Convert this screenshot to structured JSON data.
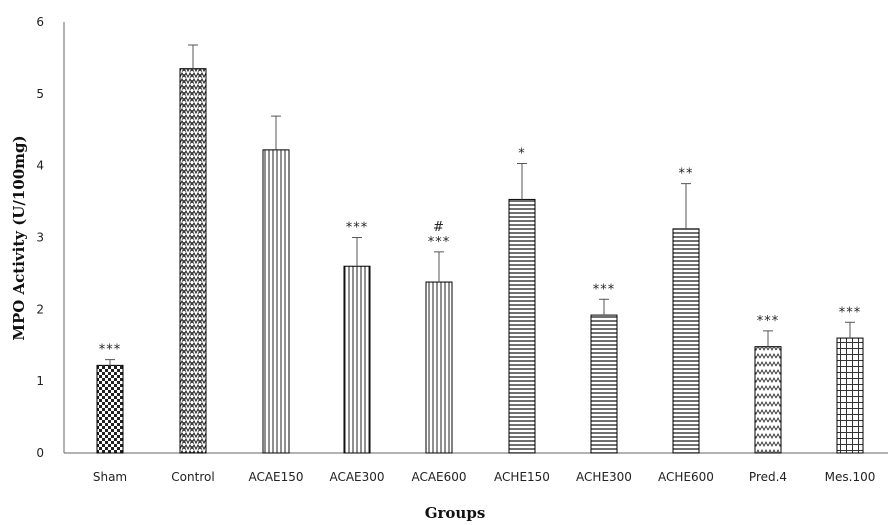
{
  "chart_data": {
    "type": "bar",
    "xlabel": "Groups",
    "ylabel": "MPO Activity (U/100mg)",
    "ylim": [
      0,
      6
    ],
    "yticks": [
      "0",
      "1",
      "2",
      "3",
      "4",
      "5",
      "6"
    ],
    "grid": false,
    "legend": "none",
    "bars": [
      {
        "category": "Sham",
        "value": 1.22,
        "error": 0.08,
        "annotation": [
          "***"
        ],
        "pattern": "checker",
        "color": "#000000"
      },
      {
        "category": "Control",
        "value": 5.35,
        "error": 0.33,
        "annotation": [],
        "pattern": "zigzag-dense",
        "color": "#000000"
      },
      {
        "category": "ACAE150",
        "value": 4.22,
        "error": 0.47,
        "annotation": [],
        "pattern": "vertical-lines",
        "color": "#000000"
      },
      {
        "category": "ACAE300",
        "value": 2.6,
        "error": 0.4,
        "annotation": [
          "***"
        ],
        "pattern": "vertical-lines",
        "color": "#000000"
      },
      {
        "category": "ACAE600",
        "value": 2.38,
        "error": 0.42,
        "annotation": [
          "#",
          "***"
        ],
        "pattern": "vertical-lines",
        "color": "#000000"
      },
      {
        "category": "ACHE150",
        "value": 3.53,
        "error": 0.5,
        "annotation": [
          "*"
        ],
        "pattern": "horizontal-lines",
        "color": "#000000"
      },
      {
        "category": "ACHE300",
        "value": 1.92,
        "error": 0.22,
        "annotation": [
          "***"
        ],
        "pattern": "horizontal-lines",
        "color": "#000000"
      },
      {
        "category": "ACHE600",
        "value": 3.12,
        "error": 0.63,
        "annotation": [
          "**"
        ],
        "pattern": "horizontal-lines",
        "color": "#000000"
      },
      {
        "category": "Pred.4",
        "value": 1.48,
        "error": 0.22,
        "annotation": [
          "***"
        ],
        "pattern": "zigzag",
        "color": "#000000"
      },
      {
        "category": "Mes.100",
        "value": 1.6,
        "error": 0.22,
        "annotation": [
          "***"
        ],
        "pattern": "grid",
        "color": "#000000"
      }
    ]
  }
}
